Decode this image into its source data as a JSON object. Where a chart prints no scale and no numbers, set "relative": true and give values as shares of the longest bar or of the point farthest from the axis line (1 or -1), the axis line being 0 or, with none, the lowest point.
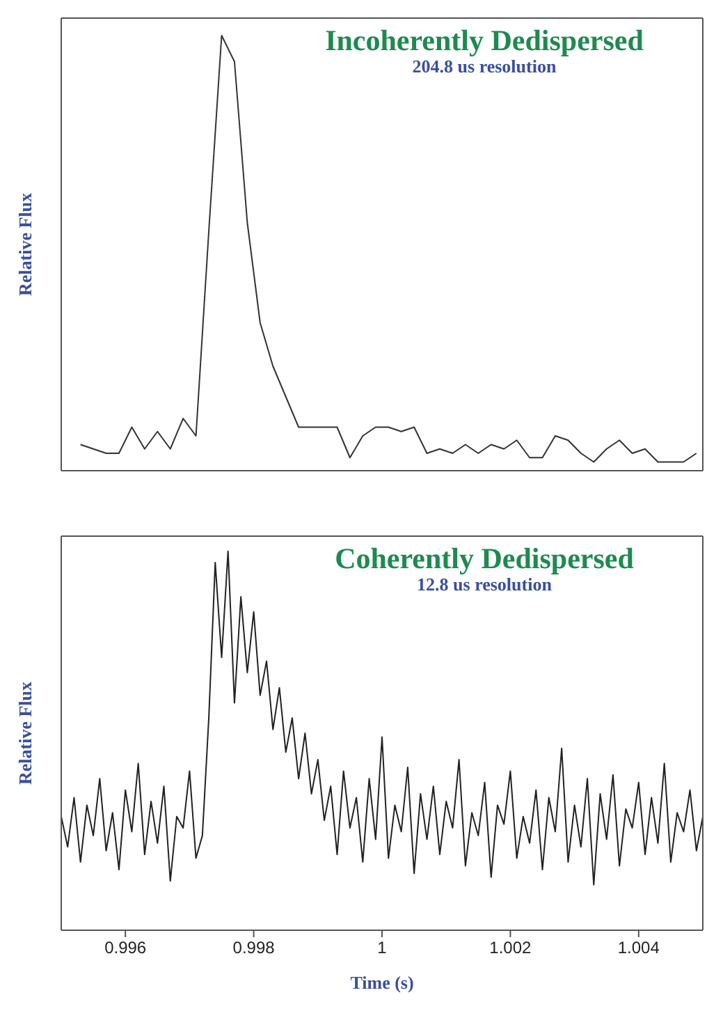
{
  "chart_data": [
    {
      "type": "line",
      "title": "Incoherently Dedispersed",
      "subtitle": "204.8 us resolution",
      "ylabel": "Relative Flux",
      "relative": true,
      "tick_labels": false,
      "xlim": [
        0.995,
        1.005
      ],
      "marker": "none",
      "series": [
        {
          "color": "#333333",
          "x": [
            0.9953,
            0.9955,
            0.9957,
            0.9959,
            0.9961,
            0.9963,
            0.9965,
            0.9967,
            0.9969,
            0.9971,
            0.9973,
            0.9975,
            0.9977,
            0.9979,
            0.9981,
            0.9983,
            0.9985,
            0.9987,
            0.9989,
            0.9991,
            0.9993,
            0.9995,
            0.9997,
            0.9999,
            1.0001,
            1.0003,
            1.0005,
            1.0007,
            1.0009,
            1.0011,
            1.0013,
            1.0015,
            1.0017,
            1.0019,
            1.0021,
            1.0023,
            1.0025,
            1.0027,
            1.0029,
            1.0031,
            1.0033,
            1.0035,
            1.0037,
            1.0039,
            1.0041,
            1.0043,
            1.0045,
            1.0047,
            1.0049
          ],
          "values": [
            0.06,
            0.05,
            0.04,
            0.04,
            0.1,
            0.05,
            0.09,
            0.05,
            0.12,
            0.08,
            0.55,
            1,
            0.94,
            0.57,
            0.34,
            0.24,
            0.17,
            0.1,
            0.1,
            0.1,
            0.1,
            0.03,
            0.08,
            0.1,
            0.1,
            0.09,
            0.1,
            0.04,
            0.05,
            0.04,
            0.06,
            0.04,
            0.06,
            0.05,
            0.07,
            0.03,
            0.03,
            0.08,
            0.07,
            0.04,
            0.02,
            0.05,
            0.07,
            0.04,
            0.05,
            0.02,
            0.02,
            0.02,
            0.04
          ]
        }
      ]
    },
    {
      "type": "line",
      "title": "Coherently Dedispersed",
      "subtitle": "12.8 us resolution",
      "ylabel": "Relative Flux",
      "xlabel": "Time (s)",
      "relative": true,
      "tick_labels": "x",
      "xlim": [
        0.995,
        1.005
      ],
      "xticks": [
        0.996,
        0.998,
        1,
        1.002,
        1.004
      ],
      "marker": "none",
      "series": [
        {
          "color": "#222222",
          "x": [
            0.995,
            0.9951,
            0.9952,
            0.9953,
            0.9954,
            0.9955,
            0.9956,
            0.9957,
            0.9958,
            0.9959,
            0.996,
            0.9961,
            0.9962,
            0.9963,
            0.9964,
            0.9965,
            0.9966,
            0.9967,
            0.9968,
            0.9969,
            0.997,
            0.9971,
            0.9972,
            0.9973,
            0.9974,
            0.9975,
            0.9976,
            0.9977,
            0.9978,
            0.9979,
            0.998,
            0.9981,
            0.9982,
            0.9983,
            0.9984,
            0.9985,
            0.9986,
            0.9987,
            0.9988,
            0.9989,
            0.999,
            0.9991,
            0.9992,
            0.9993,
            0.9994,
            0.9995,
            0.9996,
            0.9997,
            0.9998,
            0.9999,
            1,
            1.0001,
            1.0002,
            1.0003,
            1.0004,
            1.0005,
            1.0006,
            1.0007,
            1.0008,
            1.0009,
            1.001,
            1.0011,
            1.0012,
            1.0013,
            1.0014,
            1.0015,
            1.0016,
            1.0017,
            1.0018,
            1.0019,
            1.002,
            1.0021,
            1.0022,
            1.0023,
            1.0024,
            1.0025,
            1.0026,
            1.0027,
            1.0028,
            1.0029,
            1.003,
            1.0031,
            1.0032,
            1.0033,
            1.0034,
            1.0035,
            1.0036,
            1.0037,
            1.0038,
            1.0039,
            1.004,
            1.0041,
            1.0042,
            1.0043,
            1.0044,
            1.0045,
            1.0046,
            1.0047,
            1.0048,
            1.0049,
            1.005
          ],
          "values": [
            0.3,
            0.22,
            0.35,
            0.18,
            0.33,
            0.25,
            0.4,
            0.21,
            0.31,
            0.16,
            0.37,
            0.26,
            0.44,
            0.2,
            0.34,
            0.23,
            0.38,
            0.13,
            0.3,
            0.27,
            0.42,
            0.19,
            0.25,
            0.56,
            0.97,
            0.72,
            1.0,
            0.6,
            0.88,
            0.68,
            0.84,
            0.62,
            0.71,
            0.53,
            0.64,
            0.47,
            0.56,
            0.4,
            0.52,
            0.36,
            0.45,
            0.29,
            0.38,
            0.2,
            0.42,
            0.27,
            0.35,
            0.18,
            0.4,
            0.24,
            0.51,
            0.19,
            0.33,
            0.26,
            0.43,
            0.15,
            0.36,
            0.24,
            0.38,
            0.2,
            0.34,
            0.27,
            0.45,
            0.17,
            0.31,
            0.25,
            0.39,
            0.14,
            0.33,
            0.28,
            0.42,
            0.19,
            0.3,
            0.23,
            0.37,
            0.16,
            0.35,
            0.26,
            0.48,
            0.18,
            0.33,
            0.22,
            0.4,
            0.12,
            0.36,
            0.24,
            0.41,
            0.17,
            0.32,
            0.27,
            0.39,
            0.2,
            0.35,
            0.23,
            0.44,
            0.18,
            0.31,
            0.26,
            0.37,
            0.21,
            0.3
          ]
        }
      ]
    }
  ]
}
